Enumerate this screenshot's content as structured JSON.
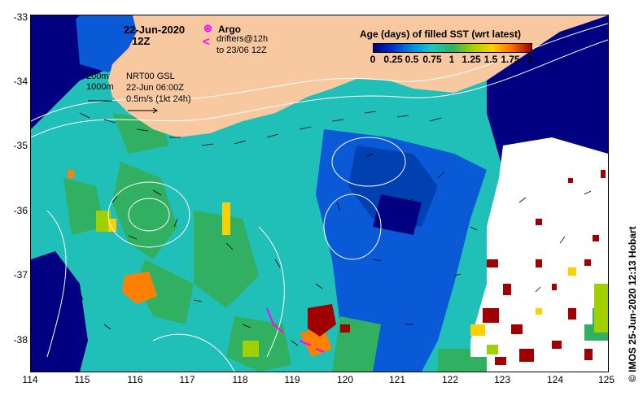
{
  "map": {
    "date_title": "22-Jun-2020",
    "time_title": "12Z",
    "argo_label": "Argo",
    "argo_symbol": "⊛",
    "drifter_symbol": "<",
    "drifter_line1": "drifters@12h",
    "drifter_line2": "to 23/06 12Z",
    "colorbar_title": "Age (days) of filled SST (wrt latest)",
    "colorbar_ticks": [
      "0",
      "0.25",
      "0.5",
      "0.75",
      "1",
      "1.25",
      "1.5",
      "1.75",
      "2"
    ],
    "depth_label_1": "200m",
    "depth_label_2": "1000m",
    "model_line1": "NRT00 GSL",
    "model_line2": "22-Jun 06:00Z",
    "scale_label": "0.5m/s (1kt 24h)",
    "credit": "© IMOS 25-Jun-2020 12:13 Hobart",
    "lat_ticks": [
      "-33",
      "-34",
      "-35",
      "-36",
      "-37",
      "-38"
    ],
    "lon_ticks": [
      "114",
      "115",
      "116",
      "117",
      "118",
      "119",
      "120",
      "121",
      "122",
      "123",
      "124",
      "125"
    ],
    "colors": {
      "land": "#f8c9a0",
      "ocean_age0": "#000080",
      "age_low": "#0a5ad8",
      "age_mid": "#20c0b8",
      "age_green": "#30b060",
      "age_yellow": "#ffd000",
      "age_orange": "#ff8000",
      "age_dark": "#a00000",
      "no_data": "#ffffff",
      "argo_drifter": "#ff00ff"
    }
  }
}
